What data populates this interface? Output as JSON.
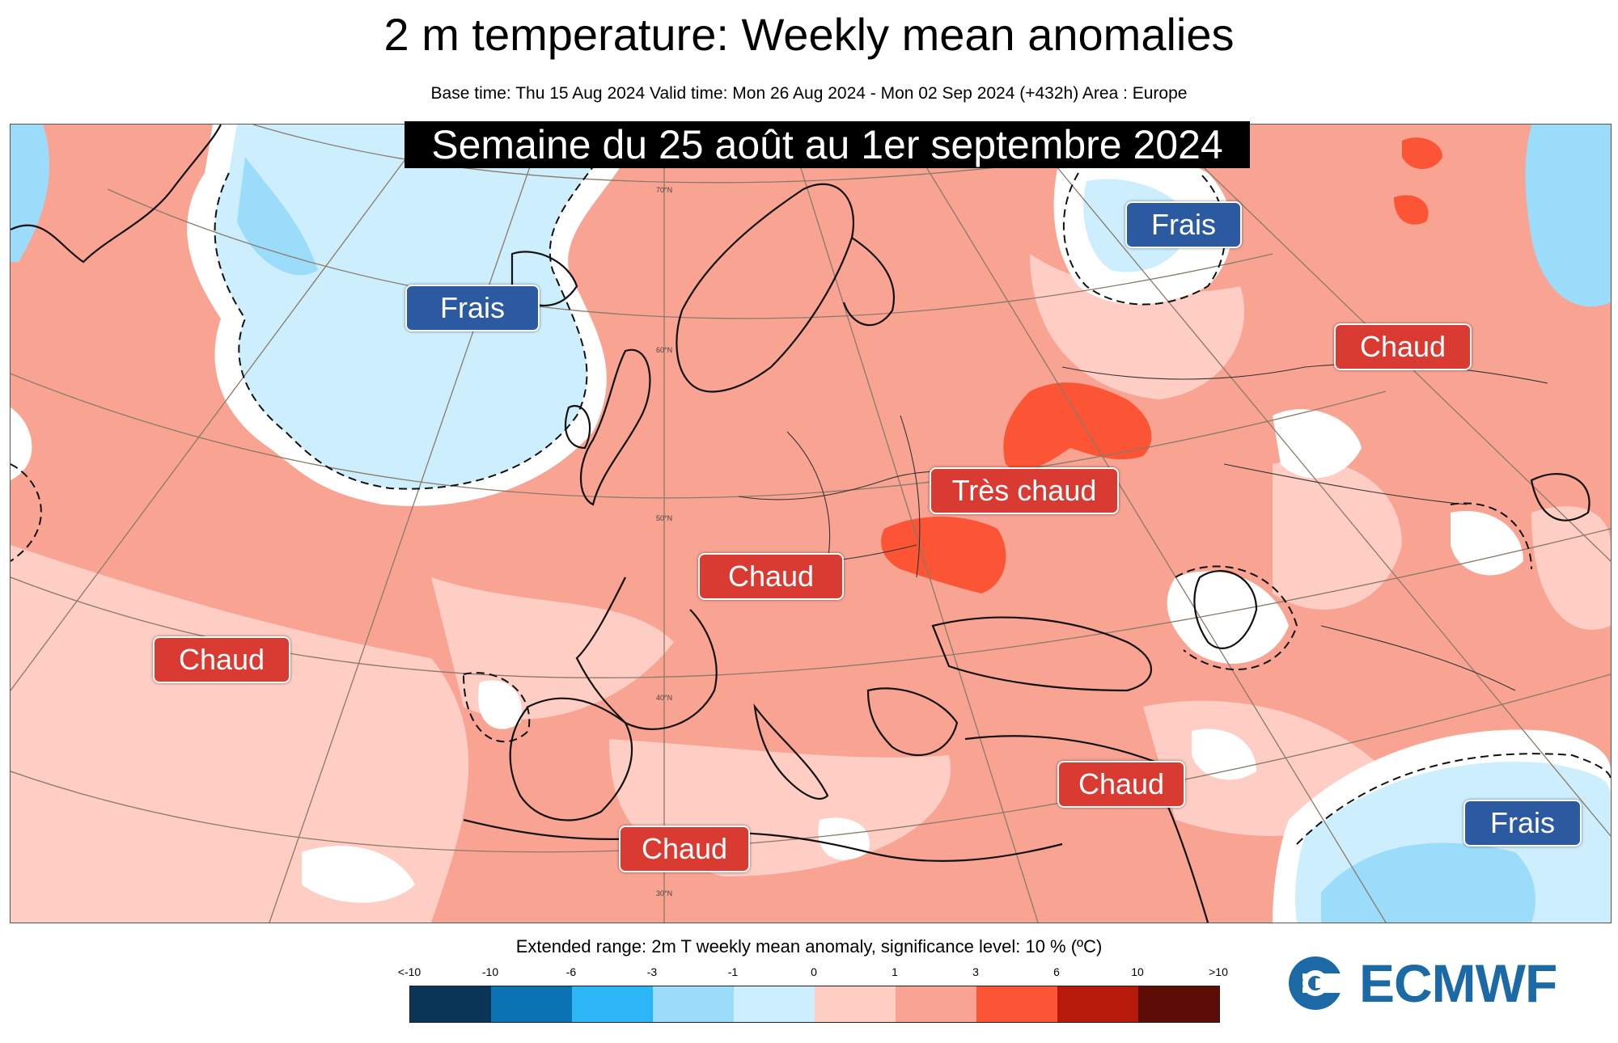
{
  "title": "2 m temperature: Weekly mean anomalies",
  "subtitle": "Base time: Thu 15 Aug 2024 Valid time: Mon 26 Aug 2024 - Mon 02 Sep 2024 (+432h) Area : Europe",
  "week_banner": "Semaine du 25 août au 1er septembre 2024",
  "labels": {
    "frais_greenland": "Frais",
    "frais_north_russia": "Frais",
    "frais_southeast": "Frais",
    "chaud_atlantic": "Chaud",
    "chaud_france": "Chaud",
    "chaud_north_africa": "Chaud",
    "chaud_east_med": "Chaud",
    "chaud_russia": "Chaud",
    "tres_chaud": "Très chaud"
  },
  "latitude_labels": [
    "70°N",
    "60°N",
    "50°N",
    "40°N",
    "30°N"
  ],
  "legend": {
    "title": "Extended range: 2m T weekly mean anomaly, significance level: 10 % (ºC)",
    "ticks": [
      "<-10",
      "-10",
      "-6",
      "-3",
      "-1",
      "0",
      "1",
      "3",
      "6",
      "10",
      ">10"
    ],
    "colors": [
      "#0b3556",
      "#0b73b4",
      "#2db6f5",
      "#9cdcfb",
      "#cdeefd",
      "#fecdc4",
      "#f9a393",
      "#fb5535",
      "#b51a0b",
      "#5e0d06"
    ]
  },
  "map_colors": {
    "cold": "#cdeefd",
    "cold_strong": "#9cdcfb",
    "neutral": "#ffffff",
    "warm": "#fecdc4",
    "warmer": "#f9a393",
    "hot": "#fb5535"
  },
  "logo": {
    "text": "ECMWF",
    "color": "#1b6aa5"
  }
}
